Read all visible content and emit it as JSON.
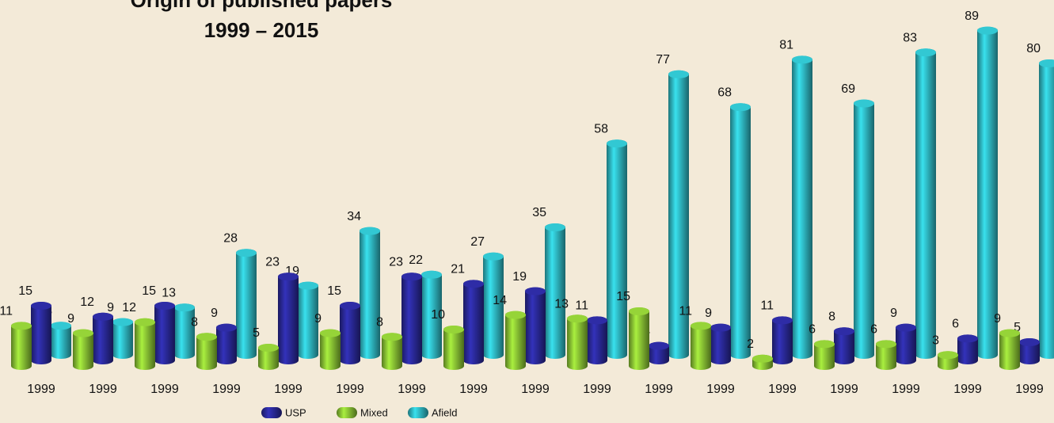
{
  "chart_data": {
    "type": "bar3d",
    "title": "Origin of published papers",
    "subtitle": "1999 – 2015",
    "categories": [
      "1999",
      "1999",
      "1999",
      "1999",
      "1999",
      "1999",
      "1999",
      "1999",
      "1999",
      "1999",
      "1999",
      "1999",
      "1999",
      "1999",
      "1999",
      "1999",
      "1999"
    ],
    "series": [
      {
        "name": "USP",
        "color": "#26258a",
        "values": [
          15,
          12,
          15,
          9,
          23,
          15,
          23,
          21,
          19,
          11,
          4,
          9,
          11,
          8,
          9,
          6,
          5
        ]
      },
      {
        "name": "Mixed",
        "color": "#7db12f",
        "values": [
          11,
          9,
          12,
          8,
          5,
          9,
          8,
          10,
          14,
          13,
          15,
          11,
          2,
          6,
          6,
          3,
          9
        ]
      },
      {
        "name": "Afield",
        "color": "#2aa7b0",
        "values": [
          8,
          9,
          13,
          28,
          19,
          34,
          22,
          27,
          35,
          58,
          77,
          68,
          81,
          69,
          83,
          89,
          80
        ]
      }
    ]
  }
}
